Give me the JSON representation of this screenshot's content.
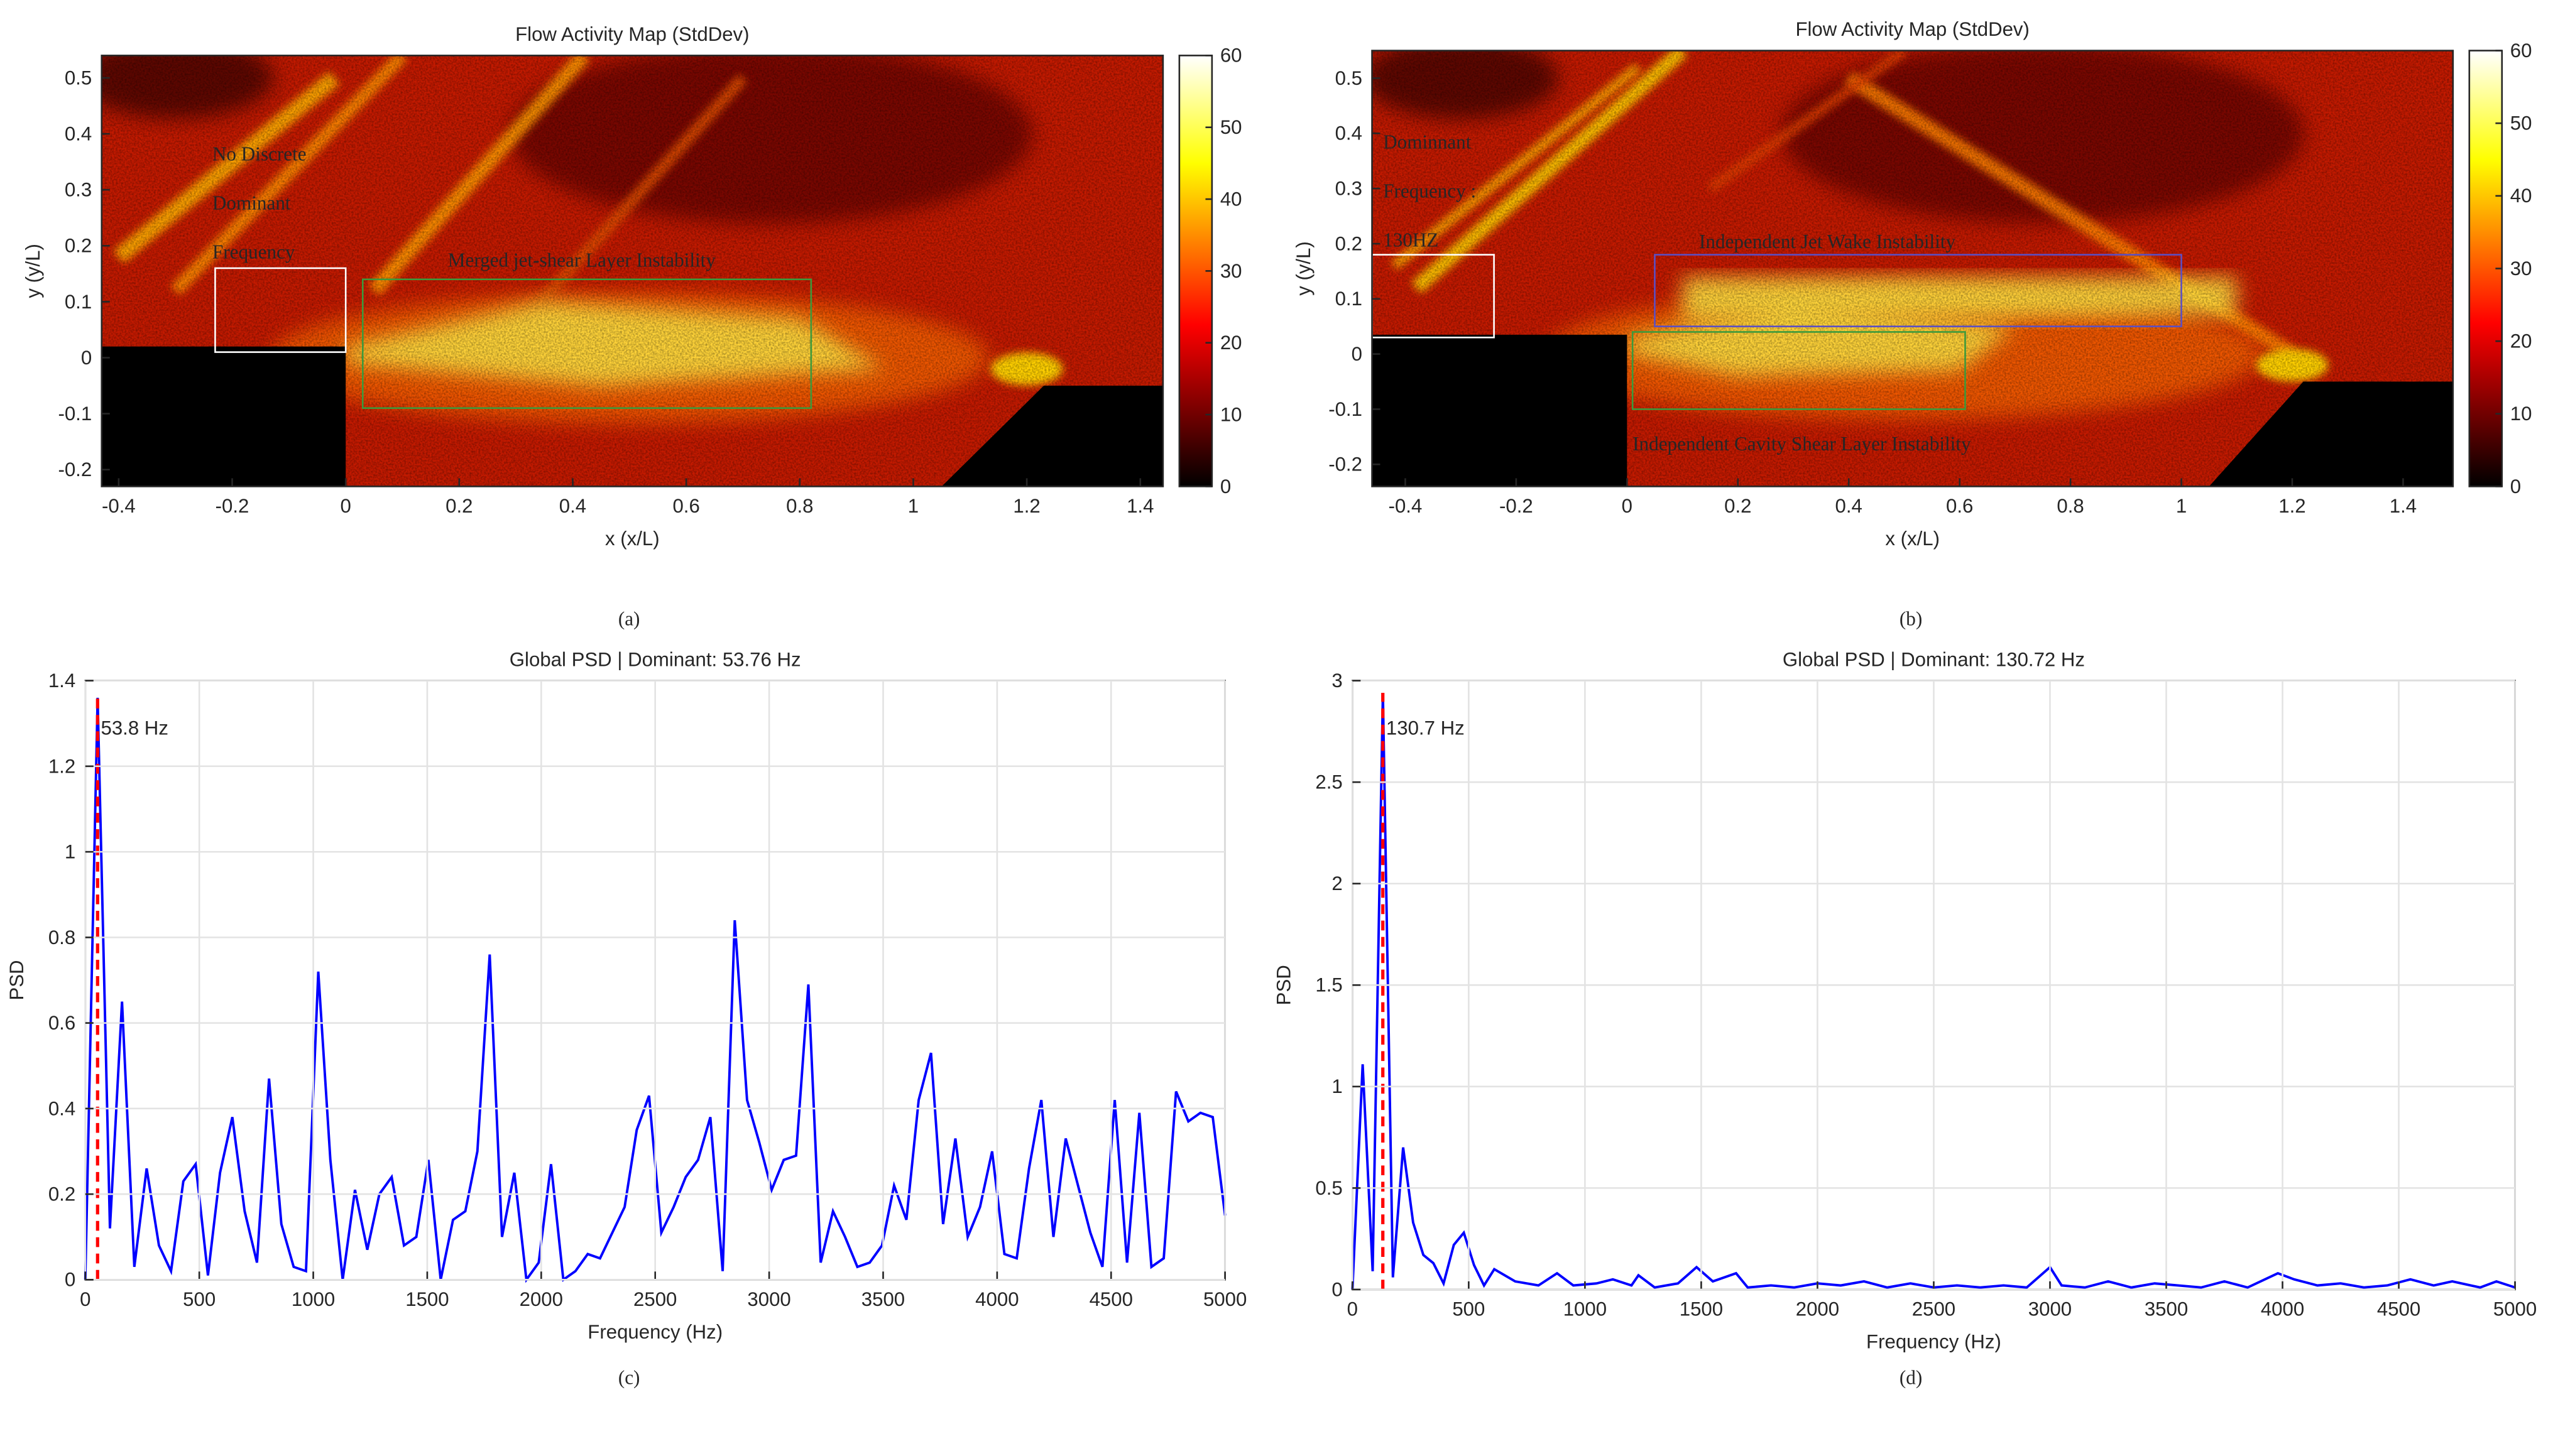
{
  "chart_data": [
    {
      "type": "heatmap",
      "panel_label": "(a)",
      "title": "Flow Activity Map (StdDev)",
      "x_label": "x (x/L)",
      "y_label": "y (y/L)",
      "xlim": [
        -0.43,
        1.44
      ],
      "ylim": [
        -0.23,
        0.54
      ],
      "xticks": [
        -0.4,
        -0.2,
        0,
        0.2,
        0.4,
        0.6,
        0.8,
        1,
        1.2,
        1.4
      ],
      "yticks": [
        -0.2,
        -0.1,
        0,
        0.1,
        0.2,
        0.3,
        0.4,
        0.5
      ],
      "colormap": "hot",
      "clim": [
        0,
        60
      ],
      "cticks": [
        0,
        10,
        20,
        30,
        40,
        50,
        60
      ],
      "annotations": [
        {
          "lines": [
            "No Discrete",
            "Dominant",
            "Frequency"
          ],
          "color": "#ffffff"
        },
        {
          "lines": [
            "Merged jet-shear Layer Instability"
          ],
          "color": "#3c9a3c"
        }
      ]
    },
    {
      "type": "heatmap",
      "panel_label": "(b)",
      "title": "Flow Activity Map (StdDev)",
      "x_label": "x (x/L)",
      "y_label": "y (y/L)",
      "xlim": [
        -0.46,
        1.49
      ],
      "ylim": [
        -0.24,
        0.55
      ],
      "xticks": [
        -0.4,
        -0.2,
        0,
        0.2,
        0.4,
        0.6,
        0.8,
        1,
        1.2,
        1.4
      ],
      "yticks": [
        -0.2,
        -0.1,
        0,
        0.1,
        0.2,
        0.3,
        0.4,
        0.5
      ],
      "colormap": "hot",
      "clim": [
        0,
        60
      ],
      "cticks": [
        0,
        10,
        20,
        30,
        40,
        50,
        60
      ],
      "annotations": [
        {
          "lines": [
            "Dominnant",
            "Frequency :",
            "130HZ"
          ],
          "color": "#ffffff"
        },
        {
          "lines": [
            "Independent Jet Wake Instability"
          ],
          "color": "#5b4fc4"
        },
        {
          "lines": [
            "Independent Cavity Shear Layer Instability"
          ],
          "color": "#3c9a3c"
        }
      ]
    },
    {
      "type": "line",
      "panel_label": "(c)",
      "title": "Global PSD | Dominant: 53.76 Hz",
      "x_label": "Frequency (Hz)",
      "y_label": "PSD",
      "xlim": [
        0,
        5000
      ],
      "ylim": [
        0,
        1.4
      ],
      "xticks": [
        0,
        500,
        1000,
        1500,
        2000,
        2500,
        3000,
        3500,
        4000,
        4500,
        5000
      ],
      "yticks": [
        0,
        0.2,
        0.4,
        0.6,
        0.8,
        1,
        1.2,
        1.4
      ],
      "grid": true,
      "x": [
        0,
        54,
        108,
        161,
        215,
        269,
        323,
        376,
        430,
        484,
        538,
        591,
        645,
        699,
        753,
        806,
        860,
        914,
        968,
        1022,
        1075,
        1129,
        1183,
        1237,
        1290,
        1344,
        1398,
        1452,
        1505,
        1559,
        1613,
        1667,
        1720,
        1774,
        1828,
        1882,
        1935,
        1989,
        2043,
        2097,
        2150,
        2204,
        2258,
        2312,
        2366,
        2419,
        2473,
        2527,
        2581,
        2634,
        2688,
        2742,
        2796,
        2849,
        2903,
        2957,
        3011,
        3064,
        3118,
        3172,
        3226,
        3280,
        3333,
        3387,
        3441,
        3495,
        3548,
        3602,
        3656,
        3710,
        3763,
        3817,
        3871,
        3925,
        3978,
        4032,
        4086,
        4140,
        4194,
        4247,
        4301,
        4355,
        4409,
        4462,
        4516,
        4570,
        4624,
        4677,
        4731,
        4785,
        4839,
        4892,
        4946,
        5000
      ],
      "series": [
        {
          "color": "#0000ff",
          "values": [
            0,
            1.36,
            0.12,
            0.65,
            0.03,
            0.26,
            0.08,
            0.02,
            0.23,
            0.27,
            0.01,
            0.25,
            0.38,
            0.16,
            0.04,
            0.47,
            0.13,
            0.03,
            0.02,
            0.72,
            0.28,
            0,
            0.21,
            0.07,
            0.2,
            0.24,
            0.08,
            0.1,
            0.28,
            0,
            0.14,
            0.16,
            0.3,
            0.76,
            0.1,
            0.25,
            0,
            0.04,
            0.27,
            0,
            0.02,
            0.06,
            0.05,
            0.11,
            0.17,
            0.35,
            0.43,
            0.11,
            0.17,
            0.24,
            0.28,
            0.38,
            0.02,
            0.84,
            0.42,
            0.32,
            0.21,
            0.28,
            0.29,
            0.69,
            0.04,
            0.16,
            0.1,
            0.03,
            0.04,
            0.08,
            0.22,
            0.14,
            0.42,
            0.53,
            0.13,
            0.33,
            0.1,
            0.17,
            0.3,
            0.06,
            0.05,
            0.26,
            0.42,
            0.1,
            0.33,
            0.22,
            0.11,
            0.03,
            0.42,
            0.04,
            0.39,
            0.03,
            0.05,
            0.44,
            0.37,
            0.39,
            0.38,
            0.15
          ]
        }
      ],
      "annotations": [
        {
          "x": 53.76,
          "label": "53.8 Hz",
          "color": "#ff0000"
        }
      ]
    },
    {
      "type": "line",
      "panel_label": "(d)",
      "title": "Global PSD | Dominant: 130.72 Hz",
      "x_label": "Frequency (Hz)",
      "y_label": "PSD",
      "xlim": [
        0,
        5000
      ],
      "ylim": [
        0,
        3
      ],
      "xticks": [
        0,
        500,
        1000,
        1500,
        2000,
        2500,
        3000,
        3500,
        4000,
        4500,
        5000
      ],
      "yticks": [
        0,
        0.5,
        1,
        1.5,
        2,
        2.5,
        3
      ],
      "grid": true,
      "x": [
        0,
        44,
        87,
        131,
        174,
        218,
        261,
        305,
        348,
        392,
        436,
        479,
        523,
        566,
        610,
        700,
        800,
        880,
        950,
        1050,
        1120,
        1200,
        1230,
        1300,
        1400,
        1480,
        1550,
        1650,
        1700,
        1800,
        1900,
        2000,
        2100,
        2200,
        2300,
        2400,
        2500,
        2600,
        2700,
        2800,
        2900,
        3000,
        3050,
        3150,
        3250,
        3350,
        3450,
        3550,
        3650,
        3750,
        3850,
        3980,
        4050,
        4150,
        4250,
        4350,
        4450,
        4550,
        4650,
        4730,
        4850,
        4920,
        5000
      ],
      "series": [
        {
          "color": "#0000ff",
          "values": [
            0,
            1.11,
            0.09,
            2.94,
            0.06,
            0.7,
            0.33,
            0.17,
            0.13,
            0.03,
            0.22,
            0.28,
            0.12,
            0.02,
            0.1,
            0.04,
            0.02,
            0.08,
            0.02,
            0.03,
            0.05,
            0.02,
            0.07,
            0.01,
            0.03,
            0.11,
            0.04,
            0.08,
            0.01,
            0.02,
            0.01,
            0.03,
            0.02,
            0.04,
            0.01,
            0.03,
            0.01,
            0.02,
            0.01,
            0.02,
            0.01,
            0.11,
            0.02,
            0.01,
            0.04,
            0.01,
            0.03,
            0.02,
            0.01,
            0.04,
            0.01,
            0.08,
            0.05,
            0.02,
            0.03,
            0.01,
            0.02,
            0.05,
            0.02,
            0.04,
            0.01,
            0.04,
            0.01
          ]
        }
      ],
      "annotations": [
        {
          "x": 130.72,
          "label": "130.7 Hz",
          "color": "#ff0000"
        }
      ]
    }
  ]
}
